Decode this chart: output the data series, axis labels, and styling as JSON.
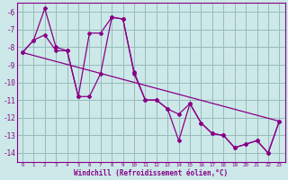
{
  "xlabel": "Windchill (Refroidissement éolien,°C)",
  "xlim": [
    -0.5,
    23.5
  ],
  "ylim": [
    -14.5,
    -5.5
  ],
  "yticks": [
    -14,
    -13,
    -12,
    -11,
    -10,
    -9,
    -8,
    -7,
    -6
  ],
  "xticks": [
    0,
    1,
    2,
    3,
    4,
    5,
    6,
    7,
    8,
    9,
    10,
    11,
    12,
    13,
    14,
    15,
    16,
    17,
    18,
    19,
    20,
    21,
    22,
    23
  ],
  "bg_color": "#cce8e8",
  "line_color": "#880088",
  "grid_color": "#99bbbb",
  "series1_x": [
    0,
    1,
    2,
    3,
    4,
    5,
    6,
    7,
    8,
    9,
    10,
    11,
    12,
    13,
    14,
    15,
    16,
    17,
    18,
    19,
    20,
    21,
    22,
    23
  ],
  "series1_y": [
    -8.3,
    -7.6,
    -5.8,
    -8.0,
    -8.2,
    -10.8,
    -10.8,
    -9.5,
    -6.3,
    -6.4,
    -9.5,
    -11.0,
    -11.0,
    -11.5,
    -13.3,
    -11.2,
    -12.3,
    -12.9,
    -13.0,
    -13.7,
    -13.5,
    -13.3,
    -14.0,
    -12.2
  ],
  "series2_x": [
    0,
    1,
    2,
    3,
    4,
    5,
    6,
    7,
    8,
    9,
    10,
    11,
    12,
    13,
    14,
    15,
    16,
    17,
    18,
    19,
    20,
    21,
    22,
    23
  ],
  "series2_y": [
    -8.3,
    -7.6,
    -7.3,
    -8.2,
    -8.2,
    -10.8,
    -7.2,
    -7.2,
    -6.3,
    -6.4,
    -9.4,
    -11.0,
    -11.0,
    -11.5,
    -11.8,
    -11.2,
    -12.3,
    -12.9,
    -13.0,
    -13.7,
    -13.5,
    -13.3,
    -14.0,
    -12.2
  ],
  "series3_x": [
    0,
    23
  ],
  "series3_y": [
    -8.3,
    -12.2
  ]
}
